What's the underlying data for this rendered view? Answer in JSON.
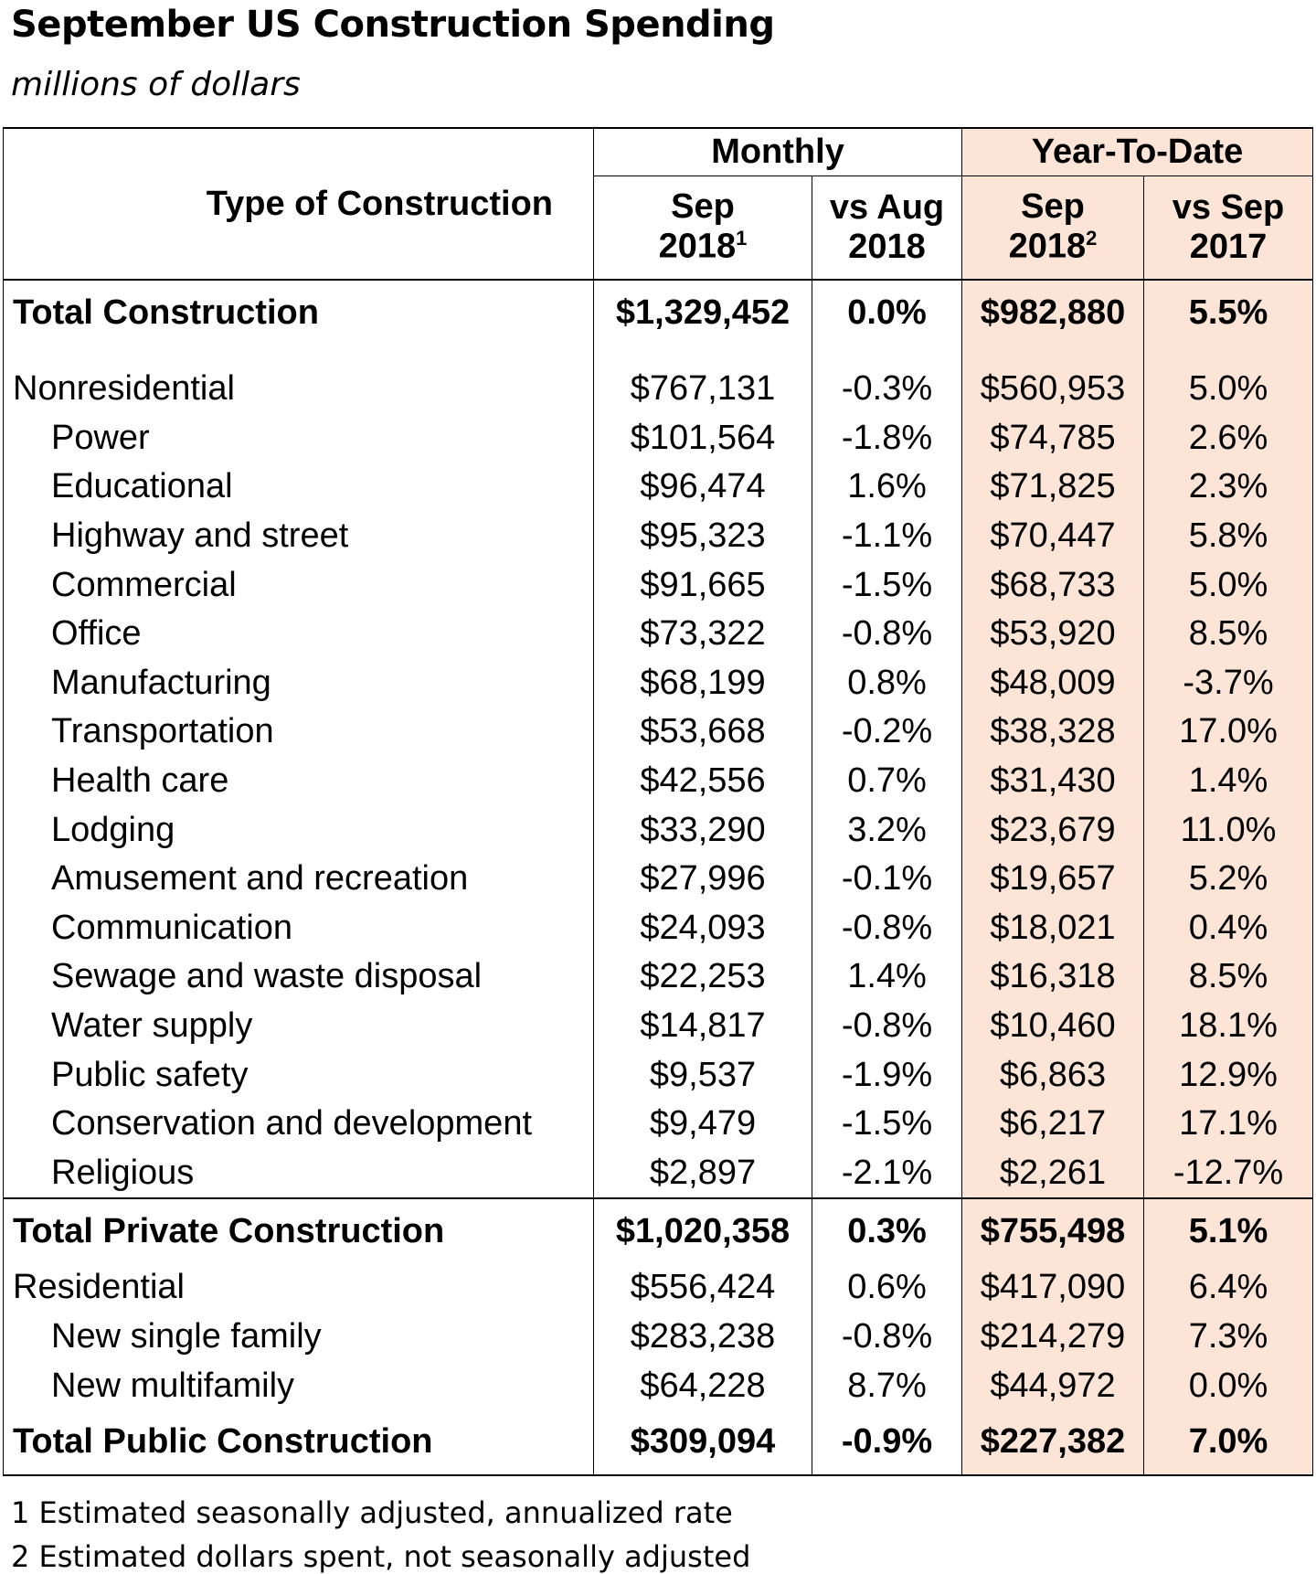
{
  "title": "September US Construction Spending",
  "subtitle": "millions of dollars",
  "header": {
    "type_label": "Type of Construction",
    "monthly": "Monthly",
    "ytd": "Year-To-Date",
    "m_sep_line1": "Sep",
    "m_sep_line2": "2018",
    "m_sep_sup": "1",
    "m_vs_line1": "vs Aug",
    "m_vs_line2": "2018",
    "y_sep_line1": "Sep",
    "y_sep_line2": "2018",
    "y_sep_sup": "2",
    "y_vs_line1": "vs Sep",
    "y_vs_line2": "2017"
  },
  "colors": {
    "ytd_fill": "#fce4d6"
  },
  "rows": [
    {
      "label": "Total Construction",
      "m": "$1,329,452",
      "mc": "0.0%",
      "y": "$982,880",
      "yc": "5.5%",
      "style": "total"
    },
    {
      "label": "Nonresidential",
      "m": "$767,131",
      "mc": "-0.3%",
      "y": "$560,953",
      "yc": "5.0%",
      "style": "group"
    },
    {
      "label": "Power",
      "m": "$101,564",
      "mc": "-1.8%",
      "y": "$74,785",
      "yc": "2.6%",
      "style": "sub"
    },
    {
      "label": "Educational",
      "m": "$96,474",
      "mc": "1.6%",
      "y": "$71,825",
      "yc": "2.3%",
      "style": "sub"
    },
    {
      "label": "Highway and street",
      "m": "$95,323",
      "mc": "-1.1%",
      "y": "$70,447",
      "yc": "5.8%",
      "style": "sub"
    },
    {
      "label": "Commercial",
      "m": "$91,665",
      "mc": "-1.5%",
      "y": "$68,733",
      "yc": "5.0%",
      "style": "sub"
    },
    {
      "label": "Office",
      "m": "$73,322",
      "mc": "-0.8%",
      "y": "$53,920",
      "yc": "8.5%",
      "style": "sub"
    },
    {
      "label": "Manufacturing",
      "m": "$68,199",
      "mc": "0.8%",
      "y": "$48,009",
      "yc": "-3.7%",
      "style": "sub"
    },
    {
      "label": "Transportation",
      "m": "$53,668",
      "mc": "-0.2%",
      "y": "$38,328",
      "yc": "17.0%",
      "style": "sub"
    },
    {
      "label": "Health care",
      "m": "$42,556",
      "mc": "0.7%",
      "y": "$31,430",
      "yc": "1.4%",
      "style": "sub"
    },
    {
      "label": "Lodging",
      "m": "$33,290",
      "mc": "3.2%",
      "y": "$23,679",
      "yc": "11.0%",
      "style": "sub"
    },
    {
      "label": "Amusement and recreation",
      "m": "$27,996",
      "mc": "-0.1%",
      "y": "$19,657",
      "yc": "5.2%",
      "style": "sub"
    },
    {
      "label": "Communication",
      "m": "$24,093",
      "mc": "-0.8%",
      "y": "$18,021",
      "yc": "0.4%",
      "style": "sub"
    },
    {
      "label": "Sewage and waste disposal",
      "m": "$22,253",
      "mc": "1.4%",
      "y": "$16,318",
      "yc": "8.5%",
      "style": "sub"
    },
    {
      "label": "Water supply",
      "m": "$14,817",
      "mc": "-0.8%",
      "y": "$10,460",
      "yc": "18.1%",
      "style": "sub"
    },
    {
      "label": "Public safety",
      "m": "$9,537",
      "mc": "-1.9%",
      "y": "$6,863",
      "yc": "12.9%",
      "style": "sub"
    },
    {
      "label": "Conservation and development",
      "m": "$9,479",
      "mc": "-1.5%",
      "y": "$6,217",
      "yc": "17.1%",
      "style": "sub"
    },
    {
      "label": "Religious",
      "m": "$2,897",
      "mc": "-2.1%",
      "y": "$2,261",
      "yc": "-12.7%",
      "style": "sub"
    },
    {
      "label": "Total Private Construction",
      "m": "$1,020,358",
      "mc": "0.3%",
      "y": "$755,498",
      "yc": "5.1%",
      "style": "total"
    },
    {
      "label": "Residential",
      "m": "$556,424",
      "mc": "0.6%",
      "y": "$417,090",
      "yc": "6.4%",
      "style": "group"
    },
    {
      "label": "New single family",
      "m": "$283,238",
      "mc": "-0.8%",
      "y": "$214,279",
      "yc": "7.3%",
      "style": "sub"
    },
    {
      "label": "New multifamily",
      "m": "$64,228",
      "mc": "8.7%",
      "y": "$44,972",
      "yc": "0.0%",
      "style": "sub"
    },
    {
      "label": "Total Public Construction",
      "m": "$309,094",
      "mc": "-0.9%",
      "y": "$227,382",
      "yc": "7.0%",
      "style": "total"
    }
  ],
  "footnotes": [
    "1 Estimated seasonally adjusted, annualized rate",
    "2 Estimated dollars spent, not seasonally adjusted"
  ]
}
